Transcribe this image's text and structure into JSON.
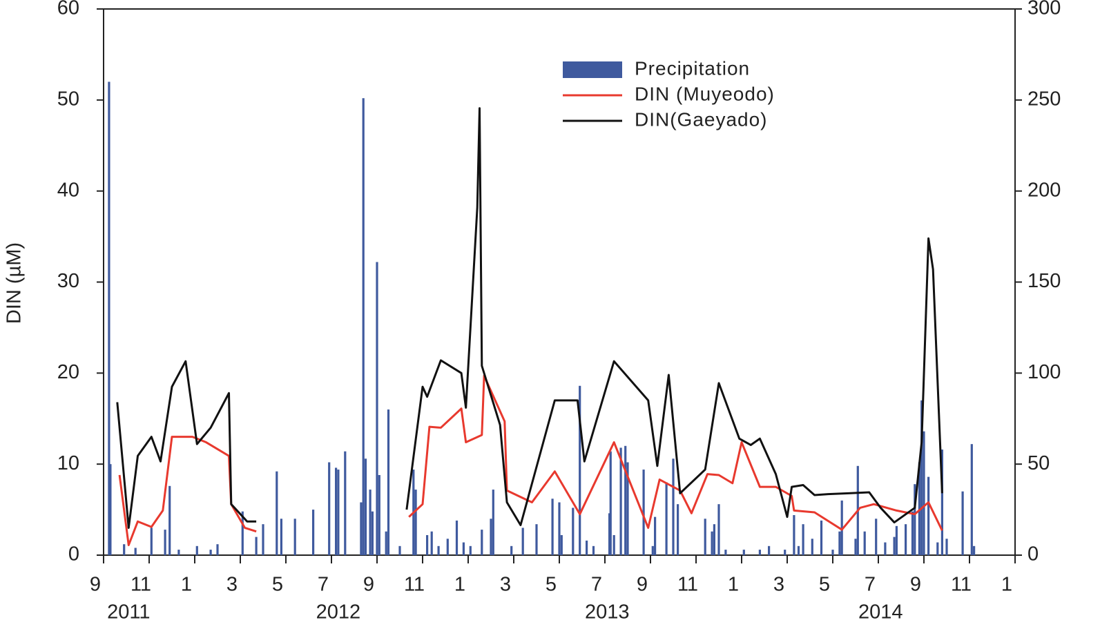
{
  "chart_data": {
    "type": "bar-line",
    "y_label": "DIN (µM)",
    "xlim": [
      0,
      40
    ],
    "xticks": [
      {
        "value": 0,
        "label": "9"
      },
      {
        "value": 2,
        "label": "11"
      },
      {
        "value": 4,
        "label": "1"
      },
      {
        "value": 6,
        "label": "3"
      },
      {
        "value": 8,
        "label": "5"
      },
      {
        "value": 10,
        "label": "7"
      },
      {
        "value": 12,
        "label": "9"
      },
      {
        "value": 14,
        "label": "11"
      },
      {
        "value": 16,
        "label": "1"
      },
      {
        "value": 18,
        "label": "3"
      },
      {
        "value": 20,
        "label": "5"
      },
      {
        "value": 22,
        "label": "7"
      },
      {
        "value": 24,
        "label": "9"
      },
      {
        "value": 26,
        "label": "11"
      },
      {
        "value": 28,
        "label": "1"
      },
      {
        "value": 30,
        "label": "3"
      },
      {
        "value": 32,
        "label": "5"
      },
      {
        "value": 34,
        "label": "7"
      },
      {
        "value": 36,
        "label": "9"
      },
      {
        "value": 38,
        "label": "11"
      },
      {
        "value": 40,
        "label": "1"
      }
    ],
    "x_groups": [
      {
        "value": 1.1,
        "label": "2011"
      },
      {
        "value": 10.3,
        "label": "2012"
      },
      {
        "value": 22.1,
        "label": "2013"
      },
      {
        "value": 34.1,
        "label": "2014"
      }
    ],
    "ylim": [
      0,
      60
    ],
    "yticks": [
      0,
      10,
      20,
      30,
      40,
      50,
      60
    ],
    "y2lim": [
      0,
      300
    ],
    "y2ticks": [
      0,
      50,
      100,
      150,
      200,
      250,
      300
    ],
    "legend": "upper center",
    "series": [
      {
        "name": "Precipitation",
        "type": "bar",
        "axis": "y2",
        "color": "#3f5a9e",
        "x": [
          0.24,
          0.3,
          0.9,
          1.4,
          2.1,
          2.7,
          2.9,
          3.3,
          4.1,
          4.7,
          5.0,
          6.1,
          6.7,
          7.0,
          7.6,
          7.8,
          8.4,
          9.2,
          9.9,
          10.2,
          10.3,
          10.6,
          11.3,
          11.4,
          11.5,
          11.7,
          11.8,
          12.0,
          12.1,
          12.4,
          12.5,
          13.0,
          13.6,
          13.7,
          14.2,
          14.4,
          14.7,
          15.1,
          15.5,
          15.8,
          16.1,
          16.6,
          17.0,
          17.1,
          17.9,
          18.4,
          19.0,
          19.7,
          20.0,
          20.1,
          20.6,
          20.9,
          21.2,
          21.5,
          22.2,
          22.25,
          22.4,
          22.7,
          22.9,
          23.0,
          23.7,
          24.1,
          24.2,
          24.7,
          25.0,
          25.2,
          26.4,
          26.7,
          26.8,
          27.0,
          27.3,
          28.1,
          28.8,
          29.2,
          29.9,
          30.3,
          30.5,
          30.7,
          31.1,
          31.5,
          32.0,
          32.3,
          32.4,
          33.0,
          33.1,
          33.4,
          33.9,
          34.3,
          34.7,
          34.8,
          35.2,
          35.5,
          35.6,
          35.8,
          35.9,
          36.0,
          36.2,
          36.6,
          36.8,
          37.0,
          37.7,
          38.1,
          38.2
        ],
        "values": [
          260,
          50,
          6,
          4,
          15,
          14,
          38,
          3,
          5,
          3,
          6,
          24,
          10,
          17,
          46,
          20,
          20,
          25,
          51,
          48,
          47,
          57,
          29,
          251,
          53,
          36,
          24,
          161,
          44,
          13,
          80,
          5,
          47,
          36,
          11,
          13,
          5,
          9,
          19,
          7,
          5,
          14,
          20,
          36,
          5,
          15,
          17,
          31,
          29,
          11,
          26,
          93,
          8,
          5,
          23,
          57,
          11,
          59,
          60,
          51,
          47,
          5,
          21,
          40,
          53,
          28,
          20,
          13,
          17,
          28,
          3,
          3,
          3,
          5,
          3,
          22,
          5,
          17,
          9,
          19,
          3,
          13,
          30,
          9,
          49,
          13,
          20,
          7,
          10,
          16,
          17,
          24,
          39,
          51,
          85,
          68,
          43,
          7,
          58,
          9,
          35,
          61,
          5
        ]
      },
      {
        "name": "DIN (Muyeodo)",
        "type": "line",
        "axis": "y",
        "color": "#e8392e",
        "x": [
          0.7,
          1.1,
          1.5,
          2.1,
          2.6,
          3.0,
          3.9,
          4.5,
          5.5,
          5.6,
          6.2,
          6.7,
          10,
          13.4,
          14.0,
          14.3,
          14.8,
          15.7,
          15.9,
          16.6,
          16.7,
          17.6,
          17.7,
          18.8,
          19.8,
          20.9,
          22.4,
          23.9,
          24.4,
          25.3,
          25.8,
          26.5,
          27.0,
          27.6,
          28.0,
          28.8,
          29.5,
          30.2,
          30.3,
          31.2,
          32.4,
          33.2,
          33.8,
          34.8,
          35.6,
          36.2,
          36.8
        ],
        "values": [
          8.8,
          1.1,
          3.7,
          3.1,
          4.9,
          13,
          13,
          12.4,
          10.9,
          5.6,
          3,
          2.6,
          null,
          4.2,
          5.6,
          14.1,
          14,
          16.1,
          12.4,
          13.2,
          19.7,
          14.7,
          7.1,
          5.8,
          9.2,
          4.5,
          12.4,
          3,
          8.3,
          7.1,
          4.6,
          8.9,
          8.8,
          7.9,
          12.4,
          7.5,
          7.5,
          6.5,
          4.9,
          4.7,
          2.8,
          5.2,
          5.6,
          4.9,
          4.5,
          5.8,
          2.7
        ]
      },
      {
        "name": "DIN(Gaeyado)",
        "type": "line",
        "axis": "y",
        "color": "#111111",
        "x": [
          0.6,
          1.1,
          1.5,
          2.1,
          2.5,
          3.0,
          3.6,
          4.1,
          4.7,
          5.5,
          5.6,
          6.3,
          6.7,
          10,
          13.3,
          14.0,
          14.2,
          14.8,
          15.7,
          15.9,
          16.4,
          16.5,
          16.6,
          17.4,
          17.7,
          18.3,
          19.8,
          20.8,
          21.1,
          22.4,
          23.9,
          24.3,
          24.8,
          25.3,
          26.4,
          27.0,
          27.9,
          28.4,
          28.8,
          29.5,
          30.0,
          30.2,
          30.7,
          31.2,
          31.8,
          32.7,
          33.6,
          34.1,
          34.7,
          35.6,
          35.9,
          36.2,
          36.4,
          36.8
        ],
        "values": [
          16.8,
          3,
          10.9,
          13,
          10.3,
          18.5,
          21.3,
          12.2,
          14,
          17.8,
          5.6,
          3.7,
          3.7,
          null,
          5,
          18.5,
          17.4,
          21.4,
          20,
          16.2,
          38.2,
          49.1,
          20.8,
          14.3,
          5.8,
          3.3,
          17,
          17,
          10.3,
          21.3,
          17,
          9.8,
          19.8,
          6.8,
          9.4,
          18.9,
          12.8,
          12.1,
          12.8,
          8.9,
          4.2,
          7.5,
          7.7,
          6.6,
          6.7,
          6.8,
          6.9,
          5.2,
          3.6,
          5.2,
          12.4,
          34.8,
          31.4,
          6.8
        ]
      }
    ]
  }
}
